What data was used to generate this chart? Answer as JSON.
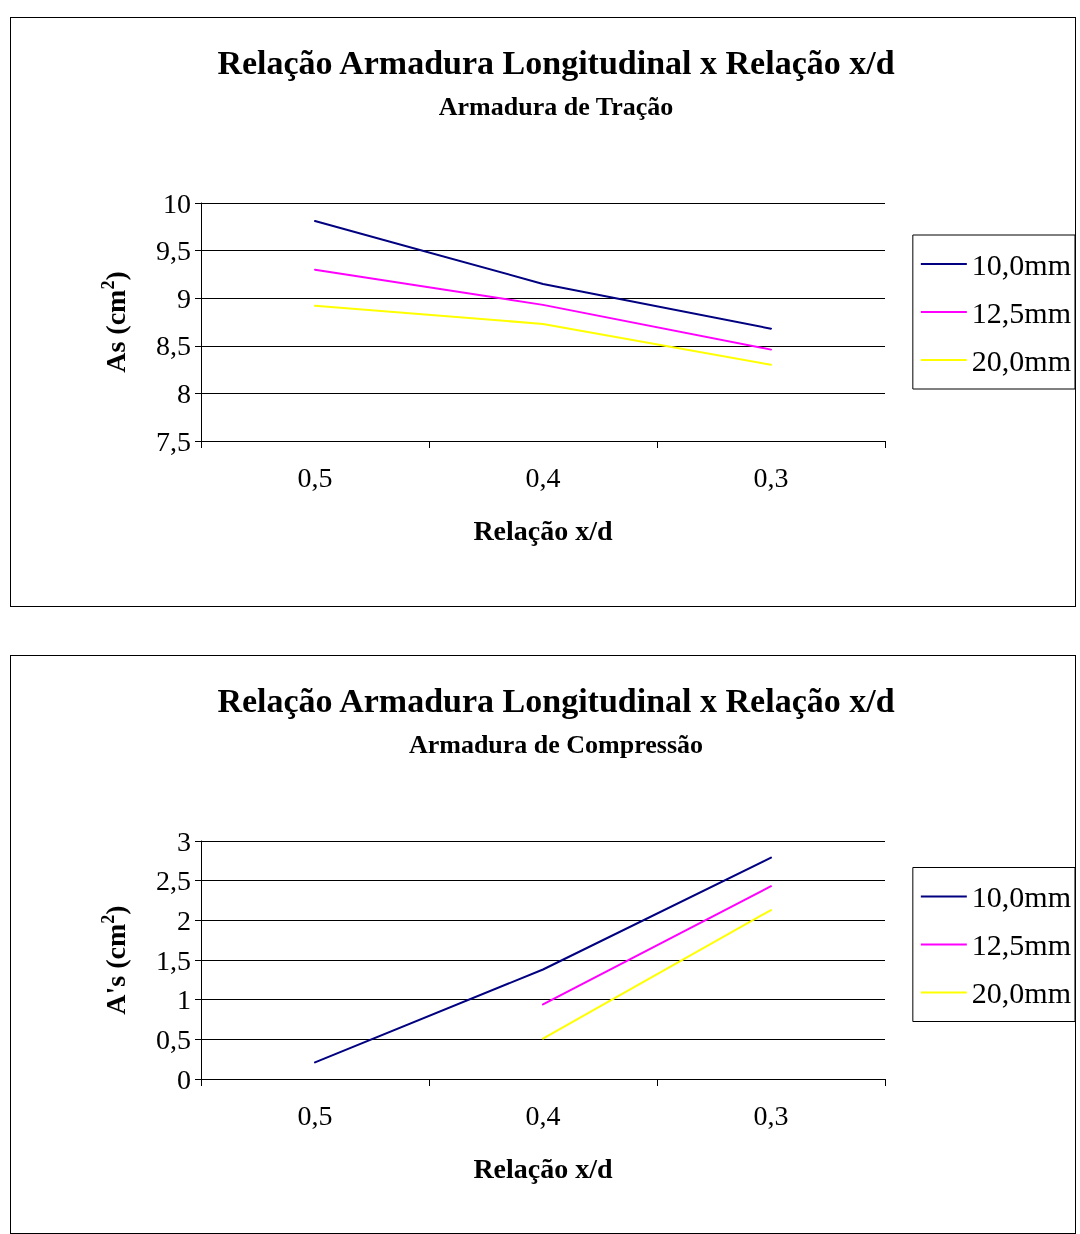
{
  "chart_data": [
    {
      "type": "line",
      "title": "Relação Armadura Longitudinal x Relação x/d",
      "subtitle": "Armadura de Tração",
      "xlabel": "Relação x/d",
      "ylabel": "As (cm$^{2}$)",
      "categories": [
        "0,5",
        "0,4",
        "0,3"
      ],
      "series": [
        {
          "name": "10,0mm",
          "color": "#000080",
          "values": [
            9.81,
            9.15,
            8.68
          ]
        },
        {
          "name": "12,5mm",
          "color": "#ff00ff",
          "values": [
            9.3,
            8.93,
            8.46
          ]
        },
        {
          "name": "20,0mm",
          "color": "#ffff00",
          "values": [
            8.92,
            8.73,
            8.3
          ]
        }
      ],
      "ylim": [
        7.5,
        10
      ],
      "yticks": [
        {
          "value": 7.5,
          "label": "7,5"
        },
        8,
        {
          "value": 8.5,
          "label": "8,5"
        },
        9,
        {
          "value": 9.5,
          "label": "9,5"
        },
        10
      ],
      "grid": "y",
      "legend": "right",
      "marker": "none",
      "line_style": "solid"
    },
    {
      "type": "line",
      "title": "Relação Armadura Longitudinal x Relação x/d",
      "subtitle": "Armadura de Compressão",
      "xlabel": "Relação x/d",
      "ylabel": "A's (cm$^{2}$)",
      "categories": [
        "0,5",
        "0,4",
        "0,3"
      ],
      "series": [
        {
          "name": "10,0mm",
          "color": "#000080",
          "values": [
            0.21,
            1.38,
            2.79
          ]
        },
        {
          "name": "12,5mm",
          "color": "#ff00ff",
          "values": [
            null,
            0.94,
            2.43
          ]
        },
        {
          "name": "20,0mm",
          "color": "#ffff00",
          "values": [
            null,
            0.51,
            2.13
          ]
        }
      ],
      "ylim": [
        0,
        3
      ],
      "yticks": [
        0,
        {
          "value": 0.5,
          "label": "0,5"
        },
        1,
        {
          "value": 1.5,
          "label": "1,5"
        },
        2,
        {
          "value": 2.5,
          "label": "2,5"
        },
        3
      ],
      "grid": "y",
      "legend": "right",
      "marker": "none",
      "line_style": "solid"
    }
  ]
}
